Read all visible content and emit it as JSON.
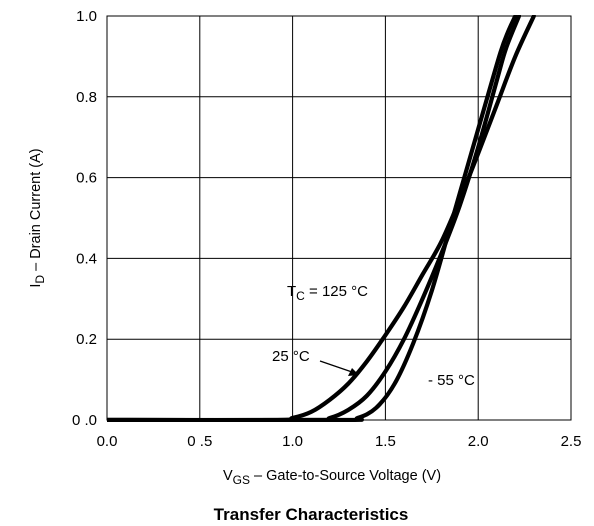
{
  "chart_data": {
    "type": "line",
    "title": "Transfer Characteristics",
    "xlabel": {
      "main": "V",
      "sub": "GS",
      "rest": "  –  Gate-to-Source Voltage (V)"
    },
    "ylabel": {
      "main": "I",
      "sub": "D",
      "rest": "  –  Drain Current (A)"
    },
    "xlim": [
      0,
      2.5
    ],
    "ylim": [
      0,
      1.0
    ],
    "xticks": [
      0,
      0.5,
      1.0,
      1.5,
      2.0,
      2.5
    ],
    "xtick_labels": [
      "0.0",
      "0 .5",
      "1.0",
      "1.5",
      "2.0",
      "2.5"
    ],
    "yticks": [
      0,
      0.2,
      0.4,
      0.6,
      0.8,
      1.0
    ],
    "ytick_labels": [
      "0 .0",
      "0.2",
      "0.4",
      "0.6",
      "0.8",
      "1.0"
    ],
    "grid": true,
    "series": [
      {
        "name": "125 °C",
        "x": [
          0,
          0.9,
          1.0,
          1.1,
          1.2,
          1.3,
          1.4,
          1.5,
          1.6,
          1.7,
          1.8,
          1.9,
          2.0,
          2.1,
          2.2,
          2.3
        ],
        "y": [
          0,
          0,
          0.005,
          0.02,
          0.05,
          0.09,
          0.145,
          0.21,
          0.28,
          0.36,
          0.44,
          0.545,
          0.66,
          0.78,
          0.9,
          1.0
        ]
      },
      {
        "name": "25 °C",
        "x": [
          0,
          1.1,
          1.2,
          1.3,
          1.4,
          1.5,
          1.6,
          1.7,
          1.8,
          1.9,
          2.0,
          2.1,
          2.15,
          2.22
        ],
        "y": [
          0,
          0,
          0.005,
          0.025,
          0.06,
          0.12,
          0.2,
          0.3,
          0.41,
          0.53,
          0.675,
          0.84,
          0.92,
          1.0
        ]
      },
      {
        "name": "- 55 °C",
        "x": [
          0,
          1.25,
          1.35,
          1.45,
          1.55,
          1.65,
          1.75,
          1.85,
          1.95,
          2.05,
          2.12,
          2.16,
          2.2
        ],
        "y": [
          0,
          0,
          0.005,
          0.03,
          0.09,
          0.19,
          0.32,
          0.48,
          0.64,
          0.8,
          0.91,
          0.96,
          1.0
        ]
      }
    ],
    "annotations": {
      "tc_main": "T",
      "tc_sub": "C",
      "tc_rest": " = 125 °C",
      "t25": "25 °C",
      "tm55": "- 55 °C"
    }
  }
}
